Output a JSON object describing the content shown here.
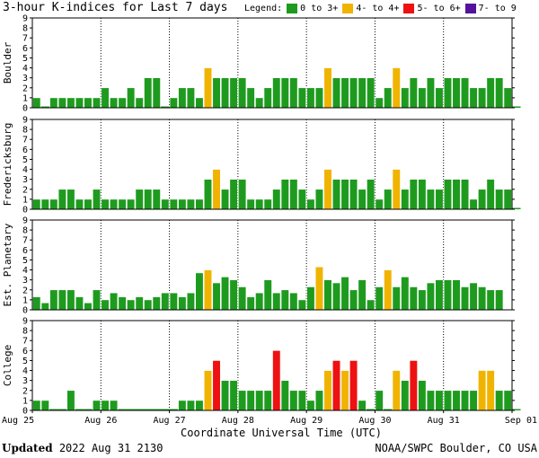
{
  "title": "3-hour K-indices for Last 7 days",
  "legend": {
    "label": "Legend:",
    "items": [
      {
        "label": "0 to 3+",
        "color": "#1e9b1e"
      },
      {
        "label": "4- to 4+",
        "color": "#f0b400"
      },
      {
        "label": "5- to 6+",
        "color": "#ee1111"
      },
      {
        "label": "7- to 9",
        "color": "#55139b"
      }
    ]
  },
  "footer": {
    "updated_label": "Updated",
    "updated_value": "2022 Aug 31 2130",
    "source": "NOAA/SWPC Boulder, CO USA"
  },
  "chart_data": {
    "type": "bar",
    "xlabel": "Coordinate Universal Time (UTC)",
    "x_ticks": [
      "Aug 25",
      "Aug 26",
      "Aug 27",
      "Aug 28",
      "Aug 29",
      "Aug 30",
      "Aug 31",
      "Sep 01"
    ],
    "ylim": [
      0,
      9
    ],
    "y_ticks": [
      "0",
      "1",
      "2",
      "3",
      "4",
      "5",
      "6",
      "7",
      "8",
      "9"
    ],
    "color_scale": [
      {
        "min": 0,
        "max": 3.99,
        "color": "#1e9b1e"
      },
      {
        "min": 4,
        "max": 4.99,
        "color": "#f0b400"
      },
      {
        "min": 5,
        "max": 6.99,
        "color": "#ee1111"
      },
      {
        "min": 7,
        "max": 9,
        "color": "#55139b"
      }
    ],
    "panels": [
      {
        "station": "Boulder",
        "values": [
          1,
          0,
          1,
          1,
          1,
          1,
          1,
          1,
          2,
          1,
          1,
          2,
          1,
          3,
          3,
          0,
          1,
          2,
          2,
          1,
          4,
          3,
          3,
          3,
          3,
          2,
          1,
          2,
          3,
          3,
          3,
          2,
          2,
          2,
          4,
          3,
          3,
          3,
          3,
          3,
          1,
          2,
          4,
          2,
          3,
          2,
          3,
          2,
          3,
          3,
          3,
          2,
          2,
          3,
          3,
          2,
          0
        ]
      },
      {
        "station": "Fredericksburg",
        "values": [
          1,
          1,
          1,
          2,
          2,
          1,
          1,
          2,
          1,
          1,
          1,
          1,
          2,
          2,
          2,
          1,
          1,
          1,
          1,
          1,
          3,
          4,
          2,
          3,
          3,
          1,
          1,
          1,
          2,
          3,
          3,
          2,
          1,
          2,
          4,
          3,
          3,
          3,
          2,
          3,
          1,
          2,
          4,
          2,
          3,
          3,
          2,
          2,
          3,
          3,
          3,
          1,
          2,
          3,
          2,
          2,
          0
        ]
      },
      {
        "station": "Est. Planetary",
        "values": [
          1.3,
          0.7,
          2,
          2,
          2,
          1.3,
          0.7,
          2,
          1,
          1.7,
          1.3,
          1,
          1.3,
          1,
          1.3,
          1.7,
          1.7,
          1.3,
          1.7,
          3.7,
          4,
          2.7,
          3.3,
          3,
          2.3,
          1.3,
          1.7,
          3,
          1.7,
          2,
          1.7,
          1,
          2.3,
          4.3,
          3,
          2.7,
          3.3,
          2,
          3,
          1,
          2.3,
          4,
          2.3,
          3.3,
          2.3,
          2,
          2.7,
          3,
          3,
          3,
          2.3,
          2.7,
          2.3,
          2,
          2
        ]
      },
      {
        "station": "College",
        "values": [
          1,
          1,
          0,
          0,
          2,
          0,
          0,
          1,
          1,
          1,
          0,
          0,
          0,
          0,
          0,
          0,
          0,
          1,
          1,
          1,
          4,
          5,
          3,
          3,
          2,
          2,
          2,
          2,
          6,
          3,
          2,
          2,
          1,
          2,
          4,
          5,
          4,
          5,
          1,
          0,
          2,
          0,
          4,
          3,
          5,
          3,
          2,
          2,
          2,
          2,
          2,
          2,
          4,
          4,
          2,
          2,
          0
        ]
      }
    ]
  }
}
